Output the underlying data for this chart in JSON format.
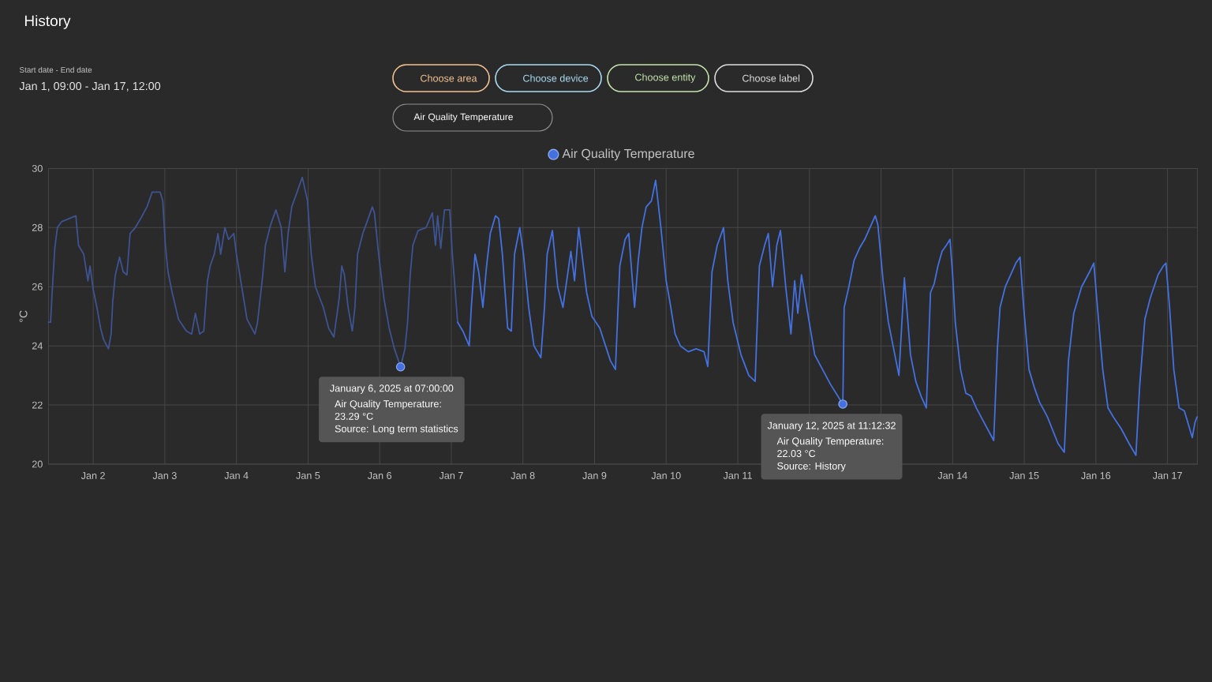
{
  "chart_data": {
    "type": "line",
    "title": "History",
    "ylabel": "°C",
    "xlim": [
      "2025-01-01T09:00",
      "2025-01-17T10:00"
    ],
    "xticks": [
      {
        "value": "2025-01-02",
        "label": "Jan 2"
      },
      {
        "value": "2025-01-03",
        "label": "Jan 3"
      },
      {
        "value": "2025-01-04",
        "label": "Jan 4"
      },
      {
        "value": "2025-01-05",
        "label": "Jan 5"
      },
      {
        "value": "2025-01-06",
        "label": "Jan 6"
      },
      {
        "value": "2025-01-07",
        "label": "Jan 7"
      },
      {
        "value": "2025-01-08",
        "label": "Jan 8"
      },
      {
        "value": "2025-01-09",
        "label": "Jan 9"
      },
      {
        "value": "2025-01-10",
        "label": "Jan 10"
      },
      {
        "value": "2025-01-11",
        "label": "Jan 11"
      },
      {
        "value": "2025-01-12",
        "label": null
      },
      {
        "value": "2025-01-13",
        "label": null
      },
      {
        "value": "2025-01-14",
        "label": "Jan 14"
      },
      {
        "value": "2025-01-15",
        "label": "Jan 15"
      },
      {
        "value": "2025-01-16",
        "label": "Jan 16"
      },
      {
        "value": "2025-01-17",
        "label": "Jan 17"
      }
    ],
    "ylim": [
      20,
      30
    ],
    "yticks": [
      20,
      22,
      24,
      26,
      28,
      30
    ],
    "grid": true,
    "legend": "top",
    "line_style": "solid",
    "series": [
      {
        "color": "#3e5391",
        "x": [
          "2025-01-01T09:00",
          "2025-01-01T09:43",
          "2025-01-01T10:14",
          "2025-01-01T11:07",
          "2025-01-01T12:00",
          "2025-01-01T13:25",
          "2025-01-01T18:11",
          "2025-01-01T19:04",
          "2025-01-01T20:49",
          "2025-01-01T22:14",
          "2025-01-01T22:56",
          "2025-01-02T00:00",
          "2025-01-02T01:14",
          "2025-01-02T02:28",
          "2025-01-02T03:32",
          "2025-01-02T05:07",
          "2025-01-02T06:00",
          "2025-01-02T06:32",
          "2025-01-02T07:25",
          "2025-01-02T08:49",
          "2025-01-02T10:04",
          "2025-01-02T11:18",
          "2025-01-02T12:21",
          "2025-01-02T14:07",
          "2025-01-02T15:53",
          "2025-01-02T18:00",
          "2025-01-02T19:46",
          "2025-01-02T22:25",
          "2025-01-02T23:18",
          "2025-01-03T00:11",
          "2025-01-03T01:04",
          "2025-01-03T02:28",
          "2025-01-03T04:35",
          "2025-01-03T07:14",
          "2025-01-03T09:00",
          "2025-01-03T10:14",
          "2025-01-03T11:39",
          "2025-01-03T13:04",
          "2025-01-03T14:17",
          "2025-01-03T15:11",
          "2025-01-03T16:35",
          "2025-01-03T17:49",
          "2025-01-03T18:42",
          "2025-01-03T20:07",
          "2025-01-03T21:21",
          "2025-01-03T23:07",
          "2025-01-04T00:00",
          "2025-01-04T01:46",
          "2025-01-04T03:32",
          "2025-01-04T06:11",
          "2025-01-04T07:04",
          "2025-01-04T07:57",
          "2025-01-04T08:49",
          "2025-01-04T09:42",
          "2025-01-04T11:28",
          "2025-01-04T13:14",
          "2025-01-04T15:00",
          "2025-01-04T16:14",
          "2025-01-04T17:18",
          "2025-01-04T18:32",
          "2025-01-04T20:18",
          "2025-01-04T22:04",
          "2025-01-04T23:49",
          "2025-01-05T01:04",
          "2025-01-05T02:28",
          "2025-01-05T05:07",
          "2025-01-05T06:53",
          "2025-01-05T08:39",
          "2025-01-05T10:25",
          "2025-01-05T11:18",
          "2025-01-05T12:11",
          "2025-01-05T13:25",
          "2025-01-05T14:49",
          "2025-01-05T15:42",
          "2025-01-05T16:35",
          "2025-01-05T18:21",
          "2025-01-05T20:07",
          "2025-01-05T21:32",
          "2025-01-05T22:14",
          "2025-01-05T23:39",
          "2025-01-06T01:25",
          "2025-01-06T03:11",
          "2025-01-06T04:56",
          "2025-01-06T07:00",
          "2025-01-06T08:28",
          "2025-01-06T09:21",
          "2025-01-06T10:14",
          "2025-01-06T11:07",
          "2025-01-06T12:53",
          "2025-01-06T15:32",
          "2025-01-06T17:39",
          "2025-01-06T18:42",
          "2025-01-06T19:25",
          "2025-01-06T20:28",
          "2025-01-06T21:42",
          "2025-01-06T23:28",
          "2025-01-07T00:21",
          "2025-01-07T02:07"
        ],
        "values": [
          24.8,
          24.8,
          25.8,
          27.3,
          28.0,
          28.2,
          28.4,
          27.4,
          27.1,
          26.2,
          26.7,
          25.9,
          25.3,
          24.6,
          24.2,
          23.9,
          24.4,
          25.5,
          26.4,
          27.0,
          26.5,
          26.4,
          27.8,
          28.0,
          28.3,
          28.7,
          29.2,
          29.2,
          28.9,
          27.4,
          26.5,
          25.8,
          24.9,
          24.5,
          24.4,
          25.1,
          24.4,
          24.5,
          26.2,
          26.7,
          27.1,
          27.8,
          27.1,
          28.0,
          27.6,
          27.8,
          27.1,
          26.0,
          24.9,
          24.4,
          24.8,
          25.6,
          26.4,
          27.4,
          28.1,
          28.6,
          28.0,
          26.5,
          27.8,
          28.7,
          29.2,
          29.7,
          28.9,
          27.1,
          26.0,
          25.3,
          24.6,
          24.3,
          25.6,
          26.7,
          26.4,
          25.3,
          24.5,
          25.3,
          27.1,
          27.8,
          28.3,
          28.7,
          28.5,
          27.1,
          25.6,
          24.6,
          23.9,
          23.29,
          23.9,
          24.8,
          26.4,
          27.4,
          27.9,
          28.0,
          28.5,
          27.4,
          28.4,
          27.3,
          28.6,
          28.6,
          27.1,
          24.8
        ]
      },
      {
        "name": "Air Quality Temperature",
        "color": "#4471e0",
        "x": [
          "2025-01-07T02:07",
          "2025-01-07T03:53",
          "2025-01-07T06:00",
          "2025-01-07T06:42",
          "2025-01-07T07:57",
          "2025-01-07T09:11",
          "2025-01-07T10:35",
          "2025-01-07T11:49",
          "2025-01-07T13:04",
          "2025-01-07T14:49",
          "2025-01-07T15:53",
          "2025-01-07T17:07",
          "2025-01-07T18:53",
          "2025-01-07T20:07",
          "2025-01-07T21:11",
          "2025-01-07T22:56",
          "2025-01-08T00:11",
          "2025-01-08T01:56",
          "2025-01-08T03:42",
          "2025-01-08T06:00",
          "2025-01-08T07:14",
          "2025-01-08T08:07",
          "2025-01-08T09:53",
          "2025-01-08T11:39",
          "2025-01-08T13:25",
          "2025-01-08T16:04",
          "2025-01-08T17:18",
          "2025-01-08T18:42",
          "2025-01-08T21:21",
          "2025-01-08T23:07",
          "2025-01-09T01:46",
          "2025-01-09T05:18",
          "2025-01-09T07:00",
          "2025-01-09T08:28",
          "2025-01-09T10:14",
          "2025-01-09T11:28",
          "2025-01-09T12:32",
          "2025-01-09T13:25",
          "2025-01-09T14:39",
          "2025-01-09T15:53",
          "2025-01-09T17:18",
          "2025-01-09T19:04",
          "2025-01-09T20:28",
          "2025-01-09T21:21",
          "2025-01-09T22:14",
          "2025-01-10T00:00",
          "2025-01-10T01:14",
          "2025-01-10T03:00",
          "2025-01-10T04:46",
          "2025-01-10T07:25",
          "2025-01-10T10:04",
          "2025-01-10T12:42",
          "2025-01-10T13:57",
          "2025-01-10T15:21",
          "2025-01-10T17:07",
          "2025-01-10T19:14",
          "2025-01-10T20:39",
          "2025-01-10T22:25",
          "2025-01-11T01:04",
          "2025-01-11T03:42",
          "2025-01-11T05:49",
          "2025-01-11T07:14",
          "2025-01-11T09:00",
          "2025-01-11T10:14",
          "2025-01-11T11:39",
          "2025-01-11T13:04",
          "2025-01-11T14:18",
          "2025-01-11T16:04",
          "2025-01-11T17:49",
          "2025-01-11T19:04",
          "2025-01-11T20:07",
          "2025-01-11T21:21",
          "2025-01-11T23:07",
          "2025-01-12T01:46",
          "2025-01-12T04:25",
          "2025-01-12T07:04",
          "2025-01-12T11:12",
          "2025-01-12T11:39",
          "2025-01-12T13:14",
          "2025-01-12T15:00",
          "2025-01-12T16:46",
          "2025-01-12T18:32",
          "2025-01-12T20:18",
          "2025-01-12T22:04",
          "2025-01-12T22:56",
          "2025-01-13T00:42",
          "2025-01-13T02:28",
          "2025-01-13T04:14",
          "2025-01-13T06:00",
          "2025-01-13T07:50",
          "2025-01-13T09:53",
          "2025-01-13T11:39",
          "2025-01-13T13:25",
          "2025-01-13T15:11",
          "2025-01-13T16:35",
          "2025-01-13T17:49",
          "2025-01-13T19:04",
          "2025-01-13T20:28",
          "2025-01-13T21:53",
          "2025-01-13T23:07",
          "2025-01-14T00:00",
          "2025-01-14T00:53",
          "2025-01-14T02:39",
          "2025-01-14T04:25",
          "2025-01-14T06:11",
          "2025-01-14T07:57",
          "2025-01-14T10:35",
          "2025-01-14T13:46",
          "2025-01-14T15:00",
          "2025-01-14T15:53",
          "2025-01-14T17:39",
          "2025-01-14T19:25",
          "2025-01-14T21:11",
          "2025-01-14T22:35",
          "2025-01-14T23:49",
          "2025-01-15T01:35",
          "2025-01-15T03:21",
          "2025-01-15T05:07",
          "2025-01-15T07:46",
          "2025-01-15T11:18",
          "2025-01-15T13:25",
          "2025-01-15T14:49",
          "2025-01-15T16:35",
          "2025-01-15T19:14",
          "2025-01-15T21:53",
          "2025-01-15T23:18",
          "2025-01-16T00:32",
          "2025-01-16T02:18",
          "2025-01-16T04:04",
          "2025-01-16T05:49",
          "2025-01-16T08:28",
          "2025-01-16T11:07",
          "2025-01-16T13:25",
          "2025-01-16T14:39",
          "2025-01-16T16:25",
          "2025-01-16T18:11",
          "2025-01-16T20:49",
          "2025-01-16T22:35",
          "2025-01-16T23:28",
          "2025-01-17T00:42",
          "2025-01-17T02:07",
          "2025-01-17T03:53",
          "2025-01-17T05:39",
          "2025-01-17T07:25",
          "2025-01-17T08:18",
          "2025-01-17T09:11",
          "2025-01-17T09:55"
        ],
        "values": [
          24.8,
          24.5,
          24.0,
          25.3,
          27.1,
          26.5,
          25.3,
          26.7,
          27.8,
          28.4,
          28.3,
          27.1,
          24.6,
          24.5,
          27.1,
          28.0,
          27.1,
          25.3,
          24.0,
          23.6,
          25.3,
          27.1,
          27.9,
          26.0,
          25.3,
          27.2,
          26.2,
          28.0,
          25.8,
          25.0,
          24.6,
          23.5,
          23.2,
          26.7,
          27.6,
          27.8,
          26.4,
          25.3,
          26.9,
          28.0,
          28.7,
          28.9,
          29.6,
          28.8,
          28.0,
          26.2,
          25.5,
          24.4,
          24.0,
          23.8,
          23.9,
          23.8,
          23.3,
          26.5,
          27.4,
          28.0,
          26.2,
          24.8,
          23.7,
          23.0,
          22.8,
          26.7,
          27.4,
          27.8,
          26.0,
          27.4,
          27.9,
          26.0,
          24.4,
          26.2,
          25.1,
          26.4,
          25.3,
          23.7,
          23.2,
          22.7,
          22.03,
          25.3,
          26.0,
          26.9,
          27.3,
          27.6,
          28.0,
          28.4,
          28.1,
          26.2,
          24.8,
          23.9,
          23.0,
          26.3,
          23.7,
          22.8,
          22.3,
          21.9,
          25.8,
          26.1,
          26.7,
          27.2,
          27.4,
          27.6,
          26.4,
          24.8,
          23.2,
          22.4,
          22.3,
          21.9,
          21.4,
          20.8,
          23.9,
          25.3,
          26.0,
          26.4,
          26.8,
          27.0,
          25.3,
          23.2,
          22.6,
          22.1,
          21.6,
          20.7,
          20.4,
          23.5,
          25.1,
          26.0,
          26.5,
          26.8,
          25.3,
          23.2,
          21.9,
          21.6,
          21.2,
          20.7,
          20.3,
          22.6,
          24.9,
          25.6,
          26.4,
          26.7,
          26.8,
          25.3,
          23.2,
          21.9,
          21.8,
          21.2,
          20.9,
          21.4,
          21.6
        ]
      }
    ],
    "annotations": [
      "Start date - End date",
      "Jan 1, 09:00 - Jan 17, 12:00",
      "Choose area",
      "Choose device",
      "Choose entity",
      "Choose label",
      "Air Quality Temperature",
      {
        "text": "January 6, 2025 at 07:00:00",
        "x": "2025-01-06T07:00",
        "y": 23.29
      },
      "Air Quality Temperature:",
      "23.29 °C",
      "Source: Long term statistics",
      {
        "text": "January 12, 2025 at 11:12:32",
        "x": "2025-01-12T11:12",
        "y": 22.03
      },
      "Air Quality Temperature:",
      "22.03 °C",
      "Source: History"
    ]
  }
}
